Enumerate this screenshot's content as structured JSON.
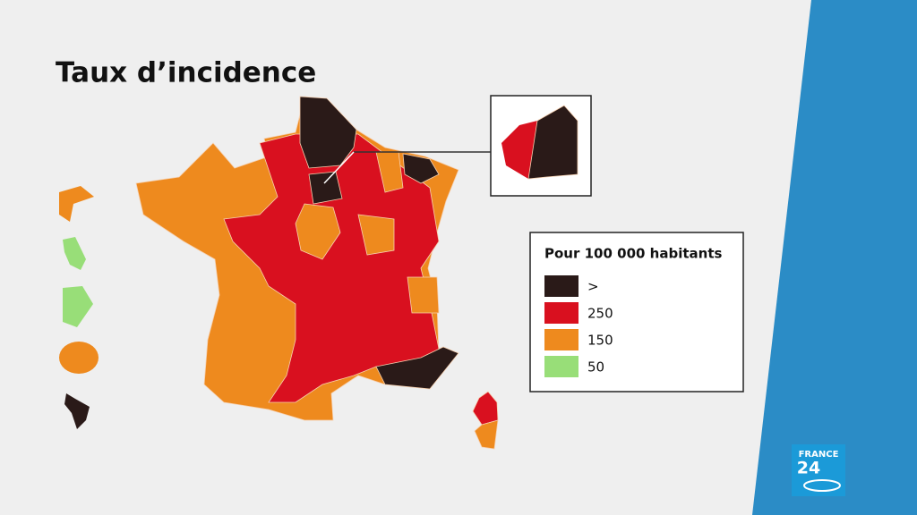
{
  "title": "Taux d’incidence",
  "legend": {
    "title": "Pour 100 000 habitants",
    "items": [
      {
        "label": ">",
        "color": "#2a1a18"
      },
      {
        "label": "250",
        "color": "#d9101f"
      },
      {
        "label": "150",
        "color": "#ee8a1e"
      },
      {
        "label": "50",
        "color": "#98de78"
      }
    ]
  },
  "logo": {
    "line1": "FRANCE",
    "line2": "24"
  }
}
